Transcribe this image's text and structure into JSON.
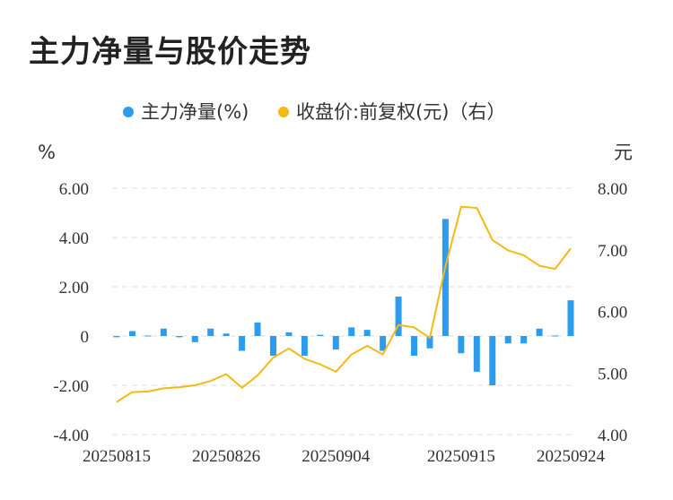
{
  "title": "主力净量与股价走势",
  "chart_data": {
    "type": "bar+line",
    "legend": [
      "主力净量(%)",
      "收盘价:前复权(元)（右）"
    ],
    "left_unit": "%",
    "right_unit": "元",
    "left_ticks": [
      "6.00",
      "4.00",
      "2.00",
      "0",
      "-2.00",
      "-4.00"
    ],
    "right_ticks": [
      "8.00",
      "7.00",
      "6.00",
      "5.00",
      "4.00"
    ],
    "x_ticks": [
      "20250815",
      "20250826",
      "20250904",
      "20250915",
      "20250924"
    ],
    "ylim_left": [
      -4,
      6
    ],
    "ylim_right": [
      4,
      8
    ],
    "colors": {
      "bar": "#2b9cf0",
      "line": "#f5b914",
      "grid": "#dddddd"
    },
    "series": [
      {
        "name": "主力净量(%)",
        "axis": "left",
        "kind": "bar",
        "values": [
          -0.05,
          0.2,
          0.02,
          0.3,
          -0.05,
          -0.25,
          0.3,
          0.1,
          -0.6,
          0.55,
          -0.8,
          0.15,
          -0.8,
          0.05,
          -0.55,
          0.35,
          0.25,
          -0.6,
          1.6,
          -0.8,
          -0.5,
          4.75,
          -0.7,
          -1.45,
          -2.0,
          -0.3,
          -0.3,
          0.3,
          0.02,
          1.45
        ]
      },
      {
        "name": "收盘价:前复权(元)（右）",
        "axis": "right",
        "kind": "line",
        "values": [
          4.53,
          4.69,
          4.7,
          4.75,
          4.77,
          4.8,
          4.87,
          4.98,
          4.76,
          4.96,
          5.25,
          5.4,
          5.23,
          5.14,
          5.02,
          5.3,
          5.44,
          5.3,
          5.78,
          5.74,
          5.57,
          6.73,
          7.7,
          7.68,
          7.16,
          6.99,
          6.91,
          6.74,
          6.69,
          7.02
        ]
      }
    ]
  }
}
